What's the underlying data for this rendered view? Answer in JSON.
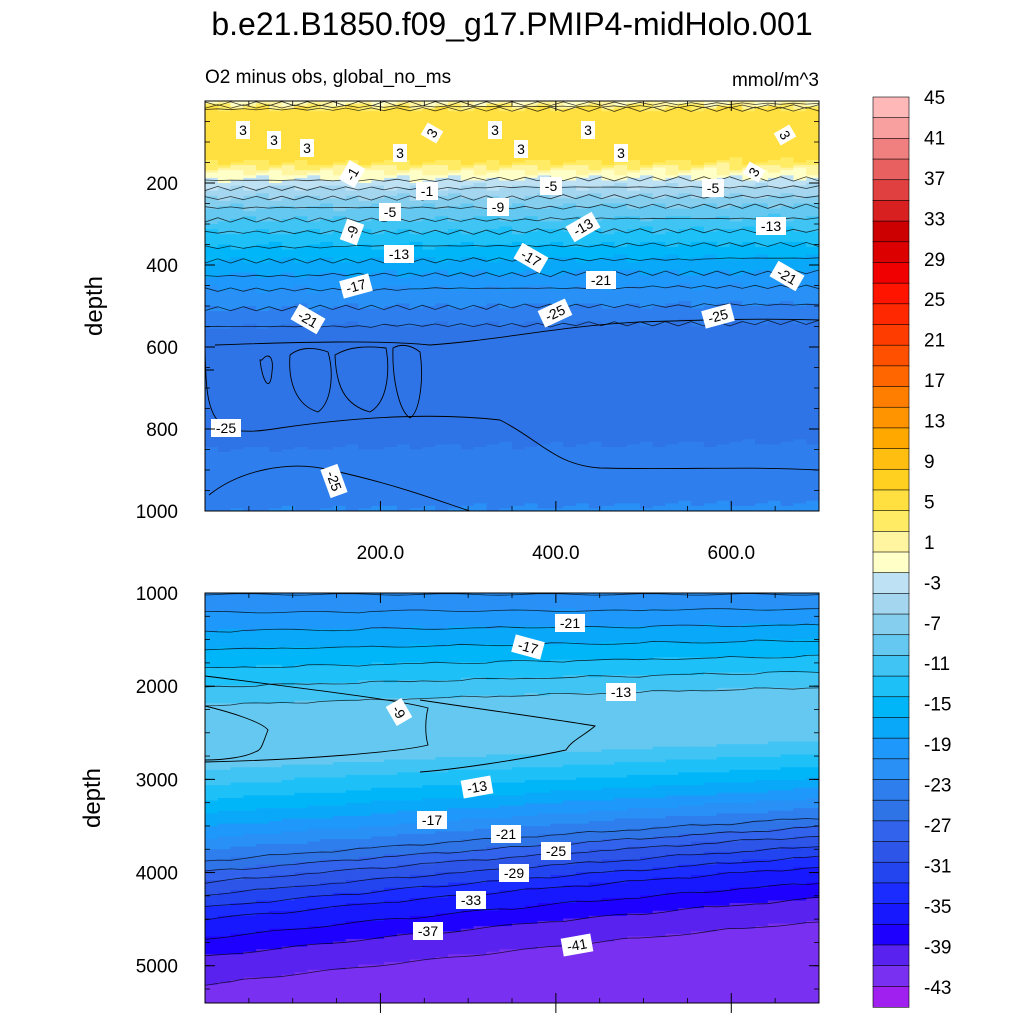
{
  "chart_data": {
    "type": "heatmap",
    "title": "b.e21.B1850.f09_g17.PMIP4-midHolo.001",
    "colorbar": {
      "levels": [
        -45,
        -43,
        -41,
        -39,
        -37,
        -35,
        -33,
        -31,
        -29,
        -27,
        -25,
        -23,
        -21,
        -19,
        -17,
        -15,
        -13,
        -11,
        -9,
        -7,
        -5,
        -3,
        -1,
        1,
        3,
        5,
        7,
        9,
        11,
        13,
        15,
        17,
        19,
        21,
        23,
        25,
        27,
        29,
        31,
        33,
        35,
        37,
        39,
        41,
        43,
        45
      ],
      "labels": [
        "45",
        "41",
        "37",
        "33",
        "29",
        "25",
        "21",
        "17",
        "13",
        "9",
        "5",
        "1",
        "-3",
        "-7",
        "-11",
        "-15",
        "-19",
        "-23",
        "-27",
        "-31",
        "-35",
        "-39",
        "-43"
      ],
      "label_values": [
        45,
        41,
        37,
        33,
        29,
        25,
        21,
        17,
        13,
        9,
        5,
        1,
        -3,
        -7,
        -11,
        -15,
        -19,
        -23,
        -27,
        -31,
        -35,
        -39,
        -43
      ],
      "colors": [
        "#A020F0",
        "#7A30F0",
        "#5A22EE",
        "#1E00FF",
        "#1818FF",
        "#1A2CFF",
        "#2345F0",
        "#2D55E8",
        "#3263EC",
        "#2F74E6",
        "#2F7EEE",
        "#2990F6",
        "#1E98FA",
        "#0AA8F8",
        "#00B6F8",
        "#1EC0F8",
        "#40C4F4",
        "#64C8F0",
        "#86CEEE",
        "#A4D6F0",
        "#BEE2F4",
        "#FFFFC8",
        "#FFF4A0",
        "#FFEC64",
        "#FFE040",
        "#FFD020",
        "#FFBE10",
        "#FFA800",
        "#FF9400",
        "#FF7E00",
        "#FF6600",
        "#FF5000",
        "#FF3C00",
        "#FF2800",
        "#FF1400",
        "#F00000",
        "#DC0000",
        "#CC0000",
        "#D82020",
        "#E04040",
        "#E86060",
        "#F08080",
        "#F8A0A0",
        "#FFB8B8"
      ]
    },
    "panels": [
      {
        "name": "upper",
        "subtitle_left": "O2 minus obs, global_no_ms",
        "subtitle_right": "mmol/m^3",
        "ylabel": "depth",
        "ylim": [
          1000,
          0
        ],
        "xlim": [
          0,
          700
        ],
        "yticks": [
          "200",
          "400",
          "600",
          "800",
          "1000"
        ],
        "ytick_values": [
          200,
          400,
          600,
          800,
          1000
        ],
        "xticks": [
          "200.0",
          "400.0",
          "600.0"
        ],
        "xtick_values": [
          200,
          400,
          600
        ],
        "depth_profile": [
          {
            "depth": 0,
            "value": -2
          },
          {
            "depth": 20,
            "value": 3
          },
          {
            "depth": 150,
            "value": 3
          },
          {
            "depth": 175,
            "value": -1
          },
          {
            "depth": 200,
            "value": -4
          },
          {
            "depth": 260,
            "value": -9
          },
          {
            "depth": 320,
            "value": -13
          },
          {
            "depth": 390,
            "value": -17
          },
          {
            "depth": 460,
            "value": -21
          },
          {
            "depth": 550,
            "value": -25
          },
          {
            "depth": 700,
            "value": -27
          },
          {
            "depth": 850,
            "value": -25
          },
          {
            "depth": 1000,
            "value": -23
          }
        ],
        "contour_labels": [
          "3",
          "3",
          "3",
          "3",
          "3",
          "3",
          "3",
          "3",
          "3",
          "3",
          "3",
          "-1",
          "-1",
          "-5",
          "-5",
          "-5",
          "-9",
          "-9",
          "-13",
          "-13",
          "-13",
          "-17",
          "-17",
          "-21",
          "-21",
          "-21",
          "-25",
          "-25",
          "-25",
          "-25",
          "-25"
        ]
      },
      {
        "name": "lower",
        "ylabel": "depth",
        "ylim": [
          5400,
          1000
        ],
        "xlim": [
          0,
          700
        ],
        "yticks": [
          "1000",
          "2000",
          "3000",
          "4000",
          "5000"
        ],
        "ytick_values": [
          1000,
          2000,
          3000,
          4000,
          5000
        ],
        "depth_profile": [
          {
            "depth": 1000,
            "value": -23
          },
          {
            "depth": 1400,
            "value": -19
          },
          {
            "depth": 1800,
            "value": -15
          },
          {
            "depth": 2200,
            "value": -11
          },
          {
            "depth": 2500,
            "value": -9
          },
          {
            "depth": 2900,
            "value": -11
          },
          {
            "depth": 3300,
            "value": -16
          },
          {
            "depth": 3700,
            "value": -22
          },
          {
            "depth": 4100,
            "value": -29
          },
          {
            "depth": 4500,
            "value": -35
          },
          {
            "depth": 5000,
            "value": -40
          },
          {
            "depth": 5400,
            "value": -42
          }
        ],
        "contour_labels": [
          "-21",
          "-17",
          "-13",
          "-9",
          "-13",
          "-17",
          "-21",
          "-25",
          "-29",
          "-33",
          "-37",
          "-41"
        ]
      }
    ]
  }
}
